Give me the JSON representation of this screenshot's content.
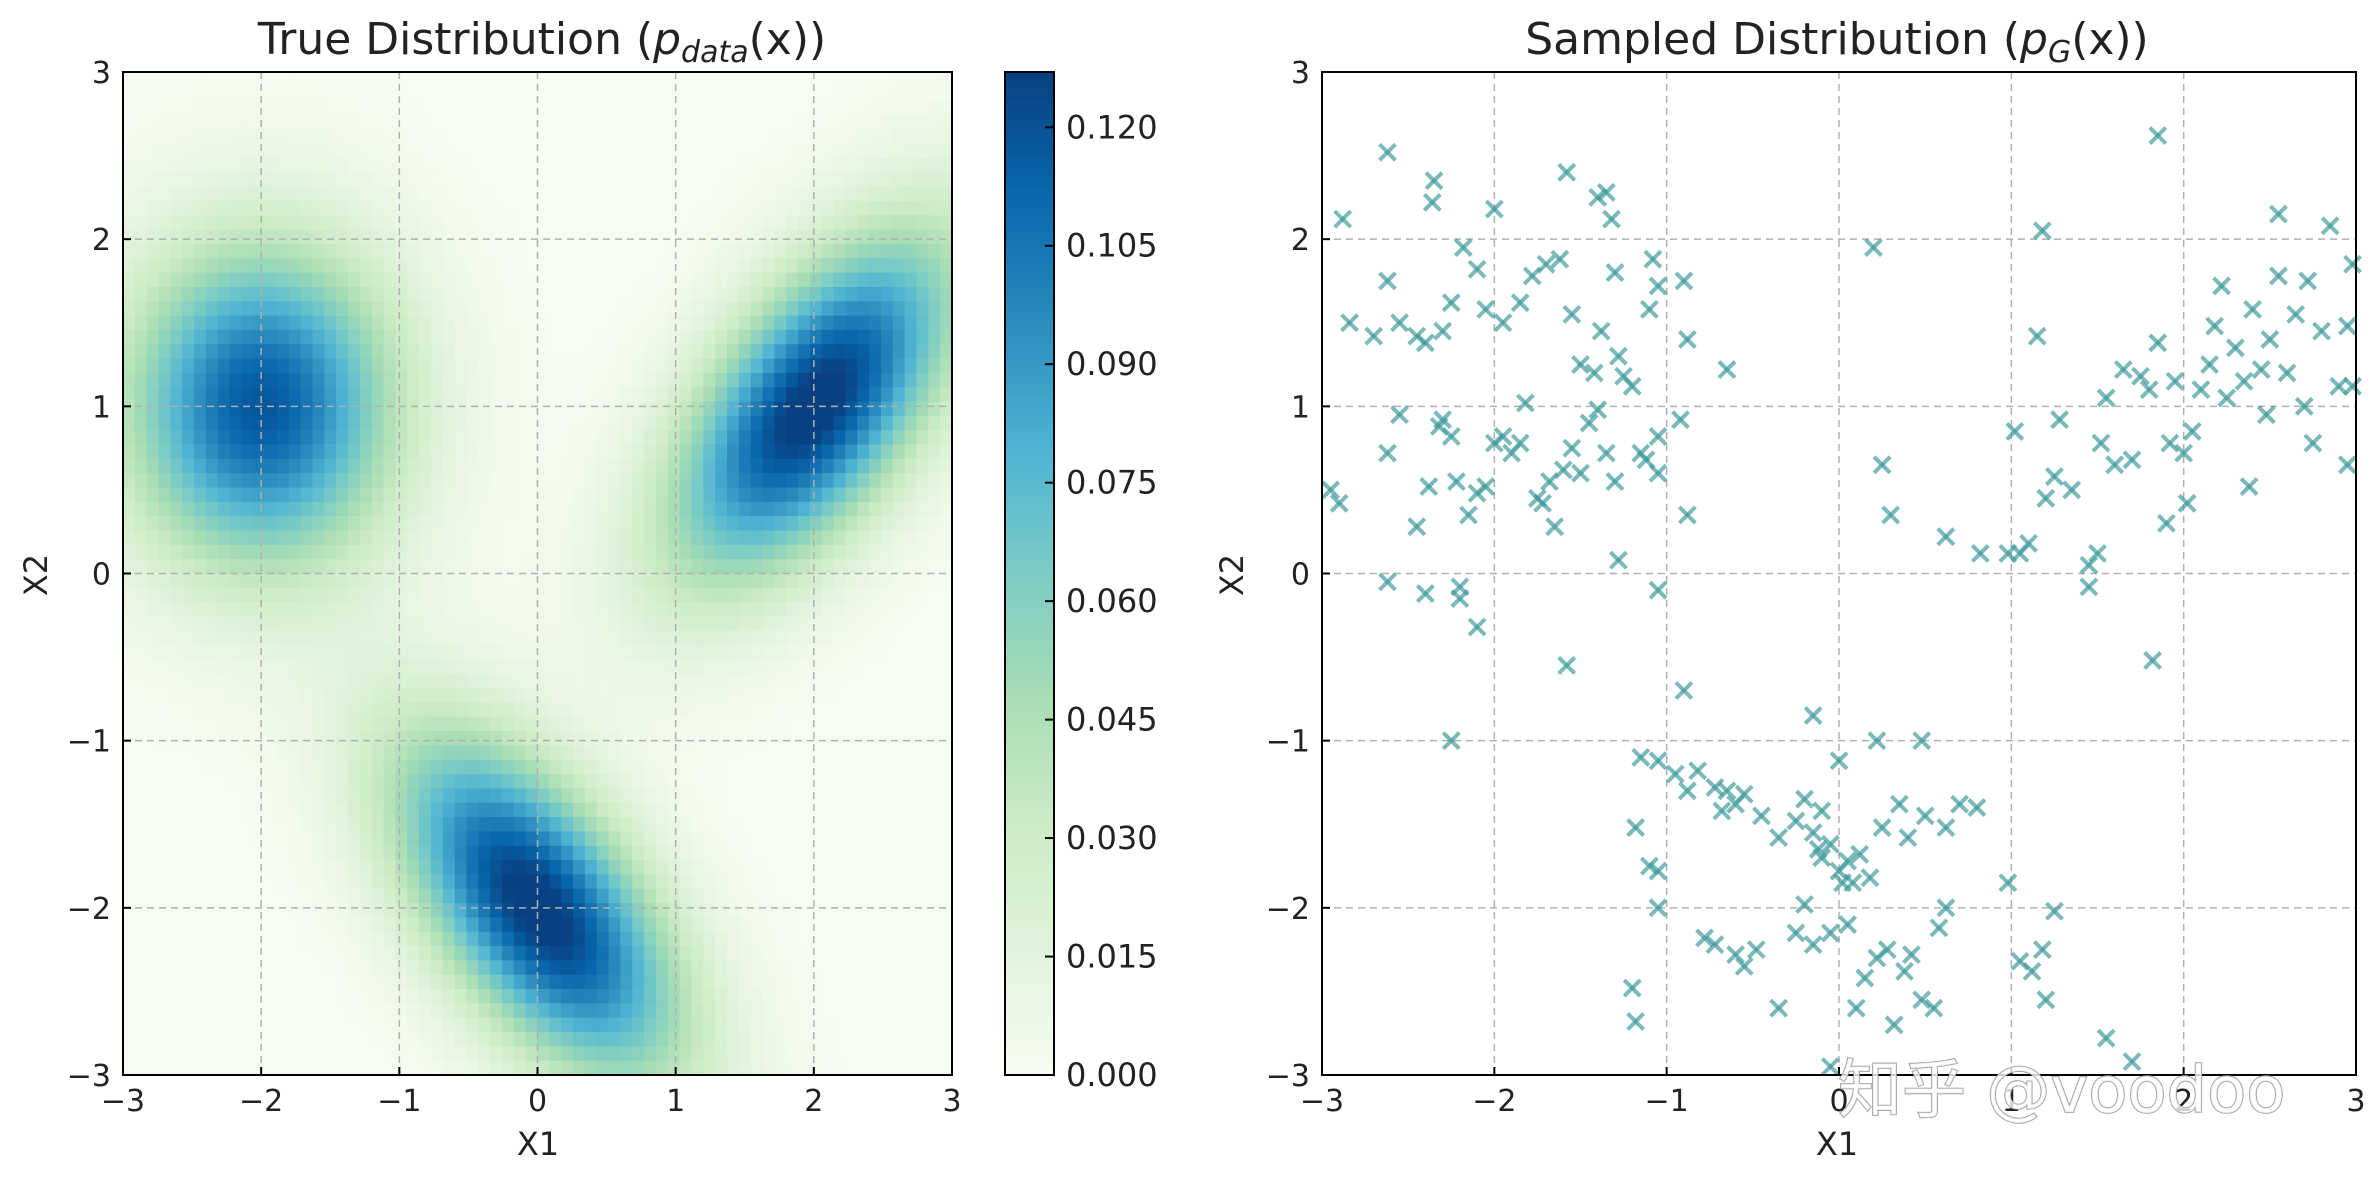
{
  "chart_data": [
    {
      "type": "heatmap",
      "title_prefix": "True Distribution (",
      "title_symbol": "p",
      "title_subscript": "data",
      "title_suffix": "(x))",
      "xlabel": "X1",
      "ylabel": "X2",
      "xlim": [
        -3,
        3
      ],
      "ylim": [
        -3,
        3
      ],
      "xticks": [
        "−3",
        "−2",
        "−1",
        "0",
        "1",
        "2",
        "3"
      ],
      "yticks": [
        "−3",
        "−2",
        "−1",
        "0",
        "1",
        "2",
        "3"
      ],
      "grid": true,
      "colormap": "GnBu",
      "colorbar": {
        "range": [
          0,
          0.127
        ],
        "ticks": [
          0,
          0.015,
          0.03,
          0.045,
          0.06,
          0.075,
          0.09,
          0.105,
          0.12
        ],
        "tick_labels": [
          "0.000",
          "0.015",
          "0.030",
          "0.045",
          "0.060",
          "0.075",
          "0.090",
          "0.105",
          "0.120"
        ]
      },
      "components": [
        {
          "weight": 0.333,
          "mean": [
            -2,
            1
          ],
          "cov": [
            [
              0.45,
              0.0
            ],
            [
              0.0,
              0.45
            ]
          ]
        },
        {
          "weight": 0.333,
          "mean": [
            2,
            1
          ],
          "cov": [
            [
              0.5,
              0.3
            ],
            [
              0.3,
              0.5
            ]
          ]
        },
        {
          "weight": 0.333,
          "mean": [
            0,
            -2
          ],
          "cov": [
            [
              0.5,
              -0.3
            ],
            [
              -0.3,
              0.5
            ]
          ]
        }
      ]
    },
    {
      "type": "scatter",
      "title_prefix": "Sampled Distribution (",
      "title_symbol": "p",
      "title_subscript": "G",
      "title_suffix": "(x))",
      "xlabel": "X1",
      "ylabel": "X2",
      "xlim": [
        -3,
        3
      ],
      "ylim": [
        -3,
        3
      ],
      "xticks": [
        "−3",
        "−2",
        "−1",
        "0",
        "1",
        "2",
        "3"
      ],
      "yticks": [
        "−3",
        "−2",
        "−1",
        "0",
        "1",
        "2",
        "3"
      ],
      "grid": true,
      "marker": "x",
      "color": "#3d9a9a",
      "points": [
        [
          -2.88,
          2.12
        ],
        [
          -2.62,
          2.52
        ],
        [
          -2.35,
          2.35
        ],
        [
          -2.36,
          2.22
        ],
        [
          -2.0,
          2.18
        ],
        [
          -1.58,
          2.4
        ],
        [
          -1.35,
          2.28
        ],
        [
          -1.32,
          2.12
        ],
        [
          -1.4,
          2.25
        ],
        [
          -2.84,
          1.5
        ],
        [
          -2.7,
          1.42
        ],
        [
          -2.62,
          1.75
        ],
        [
          -2.55,
          1.5
        ],
        [
          -2.45,
          1.42
        ],
        [
          -2.4,
          1.38
        ],
        [
          -2.3,
          1.45
        ],
        [
          -2.25,
          1.62
        ],
        [
          -2.18,
          1.95
        ],
        [
          -2.1,
          1.82
        ],
        [
          -2.05,
          1.58
        ],
        [
          -1.95,
          1.5
        ],
        [
          -1.85,
          1.62
        ],
        [
          -1.78,
          1.78
        ],
        [
          -1.7,
          1.85
        ],
        [
          -1.62,
          1.88
        ],
        [
          -1.55,
          1.55
        ],
        [
          -1.5,
          1.25
        ],
        [
          -1.42,
          1.2
        ],
        [
          -1.38,
          1.45
        ],
        [
          -1.3,
          1.8
        ],
        [
          -1.28,
          1.3
        ],
        [
          -1.25,
          1.18
        ],
        [
          -1.2,
          1.12
        ],
        [
          -1.1,
          1.58
        ],
        [
          -1.08,
          1.88
        ],
        [
          -1.05,
          1.72
        ],
        [
          -0.9,
          1.75
        ],
        [
          -0.88,
          1.4
        ],
        [
          -0.65,
          1.22
        ],
        [
          -2.95,
          0.5
        ],
        [
          -2.9,
          0.42
        ],
        [
          -2.62,
          0.72
        ],
        [
          -2.55,
          0.95
        ],
        [
          -2.45,
          0.28
        ],
        [
          -2.38,
          0.52
        ],
        [
          -2.32,
          0.88
        ],
        [
          -2.3,
          0.92
        ],
        [
          -2.25,
          0.82
        ],
        [
          -2.22,
          0.55
        ],
        [
          -2.15,
          0.35
        ],
        [
          -2.1,
          0.48
        ],
        [
          -2.05,
          0.52
        ],
        [
          -2.0,
          0.78
        ],
        [
          -1.95,
          0.82
        ],
        [
          -1.9,
          0.72
        ],
        [
          -1.85,
          0.78
        ],
        [
          -1.82,
          1.02
        ],
        [
          -1.75,
          0.45
        ],
        [
          -1.72,
          0.42
        ],
        [
          -1.68,
          0.55
        ],
        [
          -1.65,
          0.28
        ],
        [
          -1.6,
          0.62
        ],
        [
          -1.55,
          0.75
        ],
        [
          -1.5,
          0.6
        ],
        [
          -1.45,
          0.9
        ],
        [
          -1.4,
          0.98
        ],
        [
          -1.35,
          0.72
        ],
        [
          -1.3,
          0.55
        ],
        [
          -1.28,
          0.08
        ],
        [
          -1.15,
          0.72
        ],
        [
          -1.12,
          0.68
        ],
        [
          -1.05,
          0.6
        ],
        [
          -1.05,
          0.82
        ],
        [
          -0.92,
          0.92
        ],
        [
          -0.88,
          0.35
        ],
        [
          -2.62,
          -0.05
        ],
        [
          -2.4,
          -0.12
        ],
        [
          -2.2,
          -0.08
        ],
        [
          -2.2,
          -0.15
        ],
        [
          -2.1,
          -0.32
        ],
        [
          -1.58,
          -0.55
        ],
        [
          -2.25,
          -1.0
        ],
        [
          -1.05,
          -0.1
        ],
        [
          0.2,
          1.95
        ],
        [
          0.25,
          0.65
        ],
        [
          0.3,
          0.35
        ],
        [
          0.62,
          0.22
        ],
        [
          0.82,
          0.12
        ],
        [
          1.02,
          0.85
        ],
        [
          1.05,
          0.12
        ],
        [
          1.1,
          0.18
        ],
        [
          1.15,
          1.42
        ],
        [
          1.18,
          2.05
        ],
        [
          1.25,
          0.58
        ],
        [
          1.28,
          0.92
        ],
        [
          1.35,
          0.5
        ],
        [
          1.45,
          0.05
        ],
        [
          1.5,
          0.12
        ],
        [
          1.52,
          0.78
        ],
        [
          1.55,
          1.05
        ],
        [
          1.6,
          0.65
        ],
        [
          1.65,
          1.22
        ],
        [
          1.7,
          0.68
        ],
        [
          1.75,
          1.18
        ],
        [
          1.8,
          1.1
        ],
        [
          1.85,
          1.38
        ],
        [
          1.9,
          0.3
        ],
        [
          1.92,
          0.78
        ],
        [
          1.95,
          1.15
        ],
        [
          2.0,
          0.72
        ],
        [
          2.05,
          0.85
        ],
        [
          2.1,
          1.1
        ],
        [
          2.15,
          1.25
        ],
        [
          2.18,
          1.48
        ],
        [
          2.22,
          1.72
        ],
        [
          2.25,
          1.05
        ],
        [
          2.3,
          1.35
        ],
        [
          2.35,
          1.15
        ],
        [
          2.4,
          1.58
        ],
        [
          2.45,
          1.22
        ],
        [
          2.5,
          1.4
        ],
        [
          2.55,
          1.78
        ],
        [
          2.6,
          1.2
        ],
        [
          2.65,
          1.55
        ],
        [
          2.7,
          1.0
        ],
        [
          2.72,
          1.75
        ],
        [
          2.75,
          0.78
        ],
        [
          2.8,
          1.45
        ],
        [
          2.85,
          2.08
        ],
        [
          2.9,
          1.12
        ],
        [
          2.95,
          1.48
        ],
        [
          2.98,
          1.85
        ],
        [
          1.85,
          2.62
        ],
        [
          1.82,
          -0.52
        ],
        [
          2.02,
          0.42
        ],
        [
          2.38,
          0.52
        ],
        [
          2.48,
          0.95
        ],
        [
          2.55,
          2.15
        ],
        [
          2.95,
          0.65
        ],
        [
          2.98,
          1.12
        ],
        [
          1.45,
          -0.08
        ],
        [
          1.2,
          0.45
        ],
        [
          0.98,
          0.12
        ],
        [
          -0.15,
          -0.85
        ],
        [
          -0.1,
          -1.42
        ],
        [
          0.0,
          -1.12
        ],
        [
          0.22,
          -1.0
        ],
        [
          0.48,
          -1.0
        ],
        [
          0.8,
          -1.4
        ],
        [
          -1.15,
          -1.1
        ],
        [
          -1.05,
          -1.12
        ],
        [
          -0.95,
          -1.2
        ],
        [
          -0.88,
          -1.3
        ],
        [
          -0.82,
          -1.18
        ],
        [
          -0.72,
          -1.28
        ],
        [
          -0.68,
          -1.42
        ],
        [
          -0.65,
          -1.3
        ],
        [
          -0.6,
          -1.38
        ],
        [
          -0.55,
          -1.32
        ],
        [
          -0.45,
          -1.45
        ],
        [
          -0.35,
          -1.58
        ],
        [
          -0.25,
          -1.48
        ],
        [
          -0.2,
          -1.35
        ],
        [
          -0.15,
          -1.55
        ],
        [
          -0.12,
          -1.65
        ],
        [
          -0.1,
          -1.7
        ],
        [
          -0.05,
          -1.62
        ],
        [
          0.0,
          -1.78
        ],
        [
          0.02,
          -1.85
        ],
        [
          0.05,
          -1.72
        ],
        [
          0.08,
          -1.85
        ],
        [
          0.12,
          -1.68
        ],
        [
          0.18,
          -1.82
        ],
        [
          0.25,
          -1.52
        ],
        [
          0.35,
          -1.38
        ],
        [
          0.4,
          -1.58
        ],
        [
          0.5,
          -1.45
        ],
        [
          0.62,
          -1.52
        ],
        [
          0.7,
          -1.38
        ],
        [
          -1.18,
          -1.52
        ],
        [
          -1.1,
          -1.75
        ],
        [
          -1.05,
          -1.78
        ],
        [
          -1.05,
          -2.0
        ],
        [
          -1.2,
          -2.48
        ],
        [
          -1.18,
          -2.68
        ],
        [
          -0.78,
          -2.18
        ],
        [
          -0.72,
          -2.22
        ],
        [
          -0.6,
          -2.28
        ],
        [
          -0.55,
          -2.35
        ],
        [
          -0.48,
          -2.25
        ],
        [
          -0.35,
          -2.6
        ],
        [
          -0.25,
          -2.15
        ],
        [
          -0.2,
          -1.98
        ],
        [
          -0.15,
          -2.22
        ],
        [
          -0.05,
          -2.15
        ],
        [
          0.05,
          -2.1
        ],
        [
          0.1,
          -2.6
        ],
        [
          0.15,
          -2.42
        ],
        [
          0.22,
          -2.3
        ],
        [
          0.28,
          -2.25
        ],
        [
          0.32,
          -2.7
        ],
        [
          0.38,
          -2.38
        ],
        [
          0.42,
          -2.28
        ],
        [
          0.48,
          -2.55
        ],
        [
          0.55,
          -2.6
        ],
        [
          0.58,
          -2.12
        ],
        [
          0.62,
          -2.0
        ],
        [
          0.98,
          -1.85
        ],
        [
          1.05,
          -2.32
        ],
        [
          1.12,
          -2.38
        ],
        [
          1.18,
          -2.25
        ],
        [
          1.2,
          -2.55
        ],
        [
          1.25,
          -2.02
        ],
        [
          1.55,
          -2.78
        ],
        [
          1.7,
          -2.92
        ],
        [
          -0.9,
          -0.7
        ],
        [
          -0.05,
          -2.95
        ]
      ]
    }
  ],
  "watermark": "知乎 @voodoo"
}
